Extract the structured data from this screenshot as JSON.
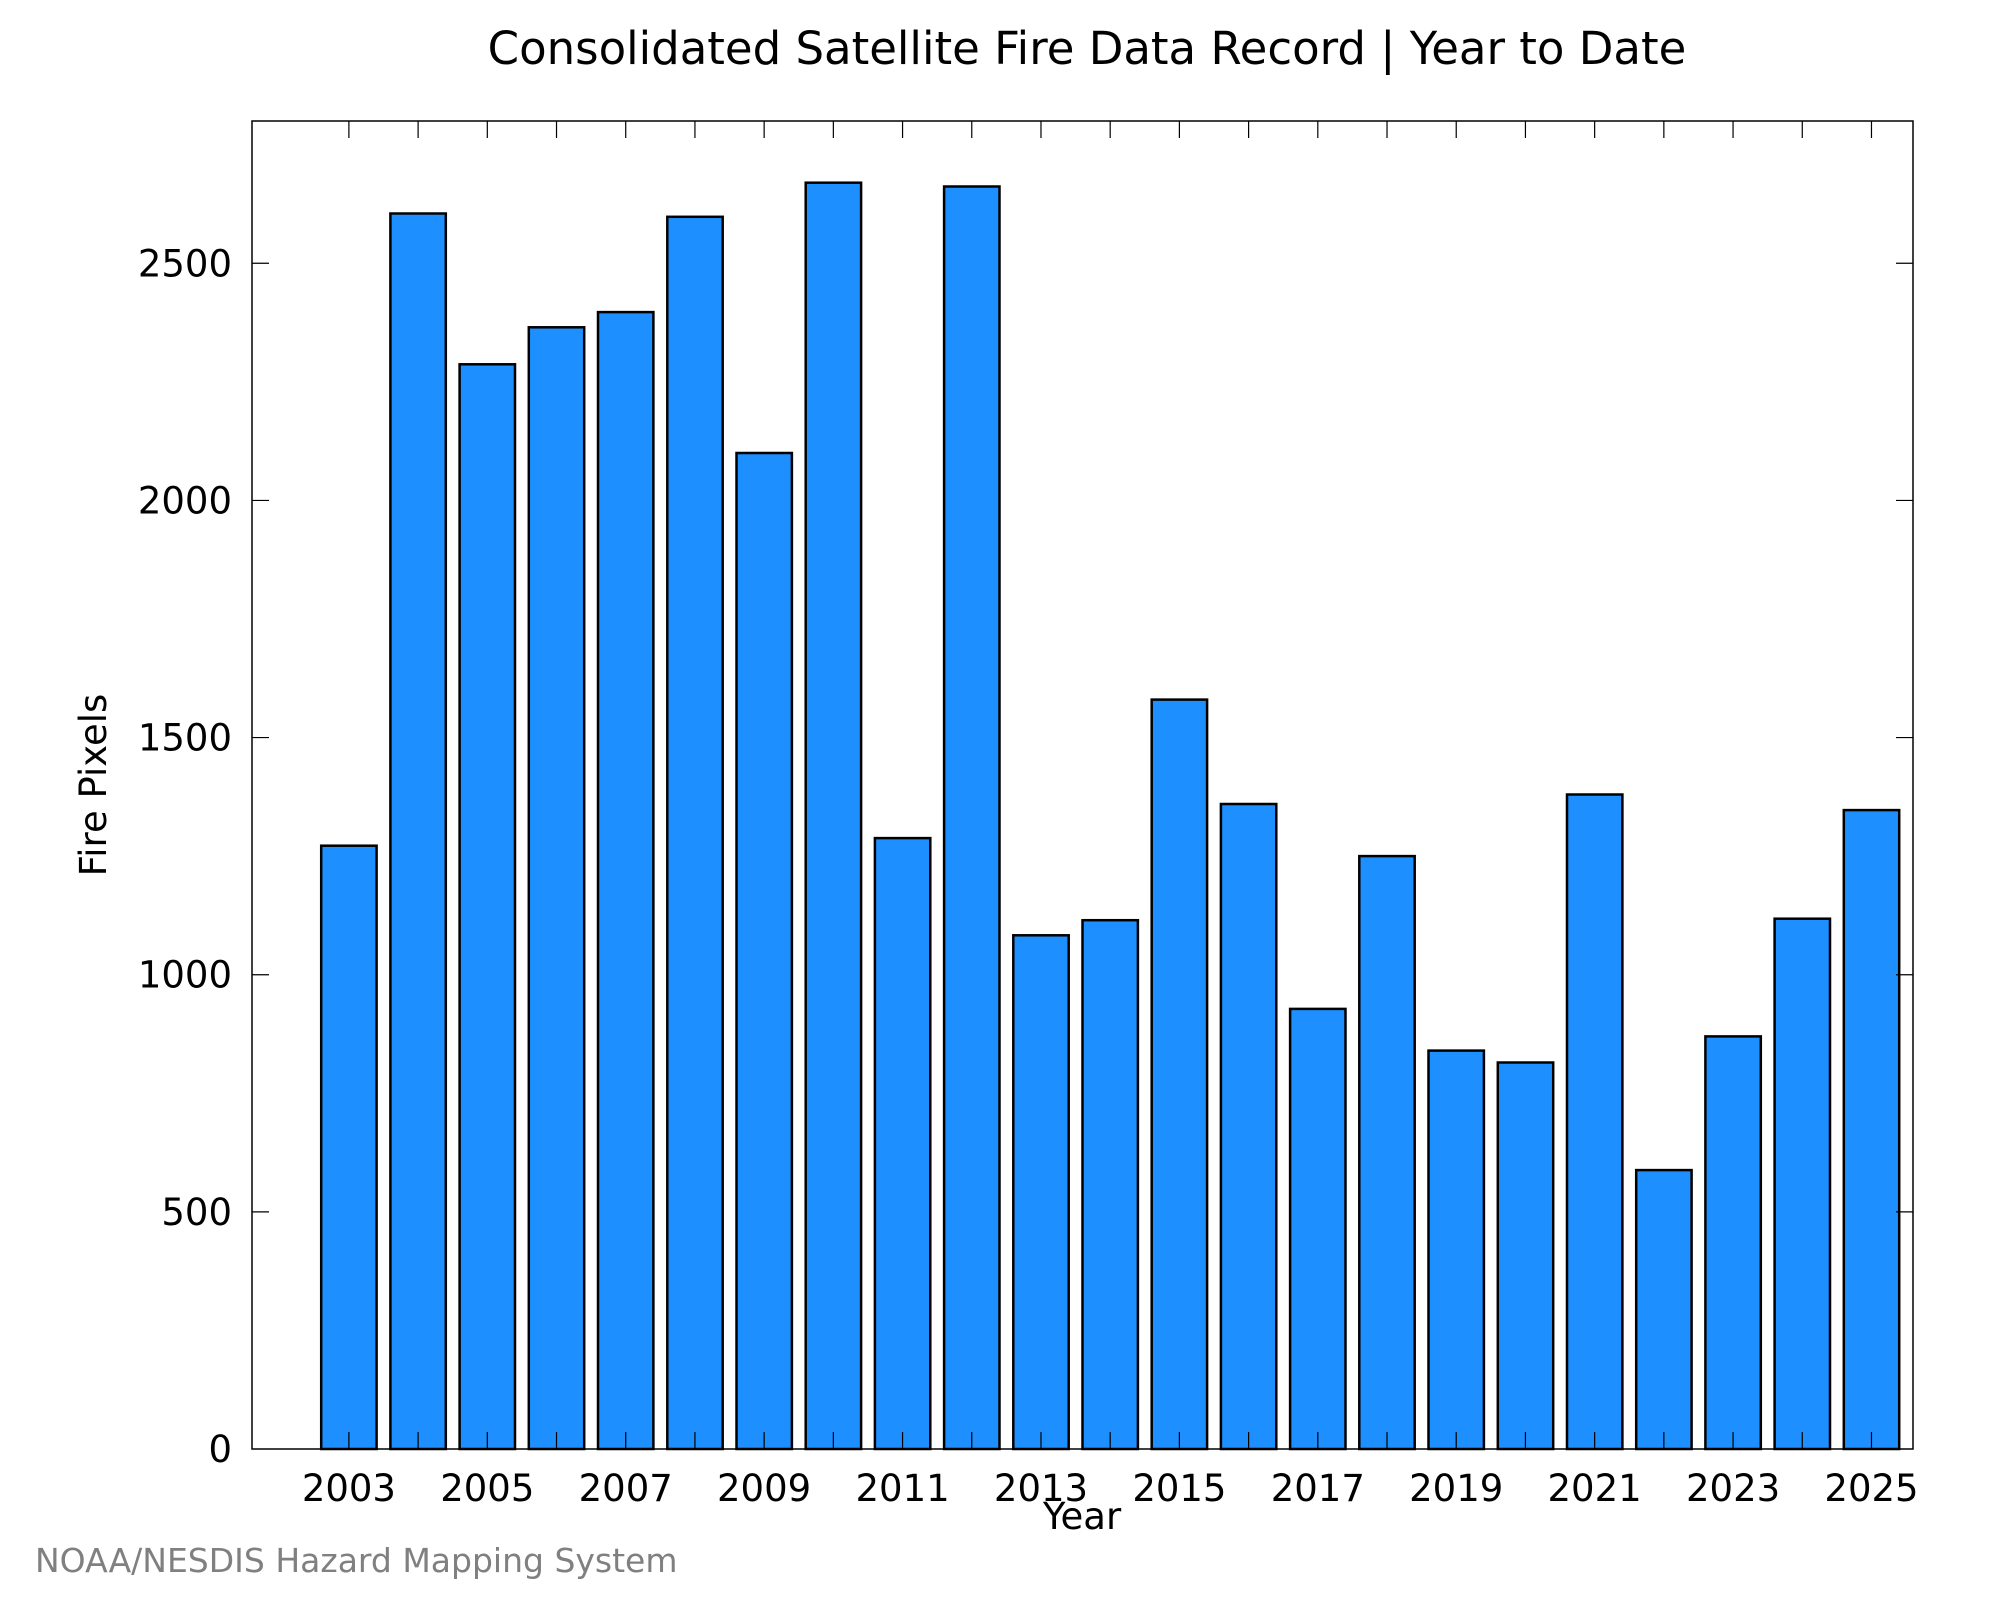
{
  "chart_data": {
    "type": "bar",
    "title": "Consolidated Satellite Fire Data Record | Year to Date",
    "xlabel": "Year",
    "ylabel": "Fire Pixels",
    "categories": [
      2003,
      2004,
      2005,
      2006,
      2007,
      2008,
      2009,
      2010,
      2011,
      2012,
      2013,
      2014,
      2015,
      2016,
      2017,
      2018,
      2019,
      2020,
      2021,
      2022,
      2023,
      2024,
      2025
    ],
    "values": [
      1272,
      2605,
      2287,
      2365,
      2397,
      2598,
      2100,
      2670,
      1288,
      2662,
      1083,
      1115,
      1580,
      1360,
      928,
      1250,
      840,
      815,
      1380,
      588,
      870,
      1118,
      1347
    ],
    "x_tick_labels": [
      "2003",
      "2005",
      "2007",
      "2009",
      "2011",
      "2013",
      "2015",
      "2017",
      "2019",
      "2021",
      "2023",
      "2025"
    ],
    "x_tick_values": [
      2003,
      2005,
      2007,
      2009,
      2011,
      2013,
      2015,
      2017,
      2019,
      2021,
      2023,
      2025
    ],
    "y_ticks": [
      0,
      500,
      1000,
      1500,
      2000,
      2500
    ],
    "y_tick_labels": [
      "0",
      "500",
      "1000",
      "1500",
      "2000",
      "2500"
    ],
    "xlim": [
      2001.6,
      2025.6
    ],
    "ylim": [
      0,
      2800
    ],
    "grid": false,
    "bar_color": "#1e8fff",
    "bar_edge_color": "#000000"
  },
  "source_note": "NOAA/NESDIS Hazard Mapping System"
}
